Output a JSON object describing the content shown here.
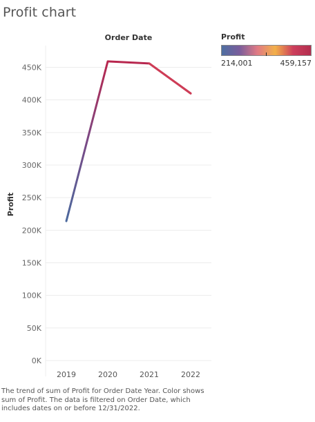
{
  "title": "Profit chart",
  "footnote": "The trend of sum of Profit for Order Date Year.  Color shows sum of Profit. The data is filtered on Order Date, which includes dates on or before 12/31/2022.",
  "legend": {
    "title": "Profit",
    "min_label": "214,001",
    "max_label": "459,157",
    "colors": [
      "#4e6fa1",
      "#7a5d9b",
      "#e07a84",
      "#f2b04a",
      "#cc3f5c",
      "#b32d4f"
    ]
  },
  "chart_data": {
    "type": "line",
    "title": "",
    "xlabel": "Order Date",
    "ylabel": "Profit",
    "categories": [
      "2019",
      "2020",
      "2021",
      "2022"
    ],
    "series": [
      {
        "values": [
          214001,
          459157,
          456000,
          410000
        ]
      }
    ],
    "ylim": [
      0,
      480000
    ],
    "yticks": [
      0,
      50000,
      100000,
      150000,
      200000,
      250000,
      300000,
      350000,
      400000,
      450000
    ],
    "ytick_labels": [
      "0K",
      "50K",
      "100K",
      "150K",
      "200K",
      "250K",
      "300K",
      "350K",
      "400K",
      "450K"
    ],
    "grid": true
  }
}
